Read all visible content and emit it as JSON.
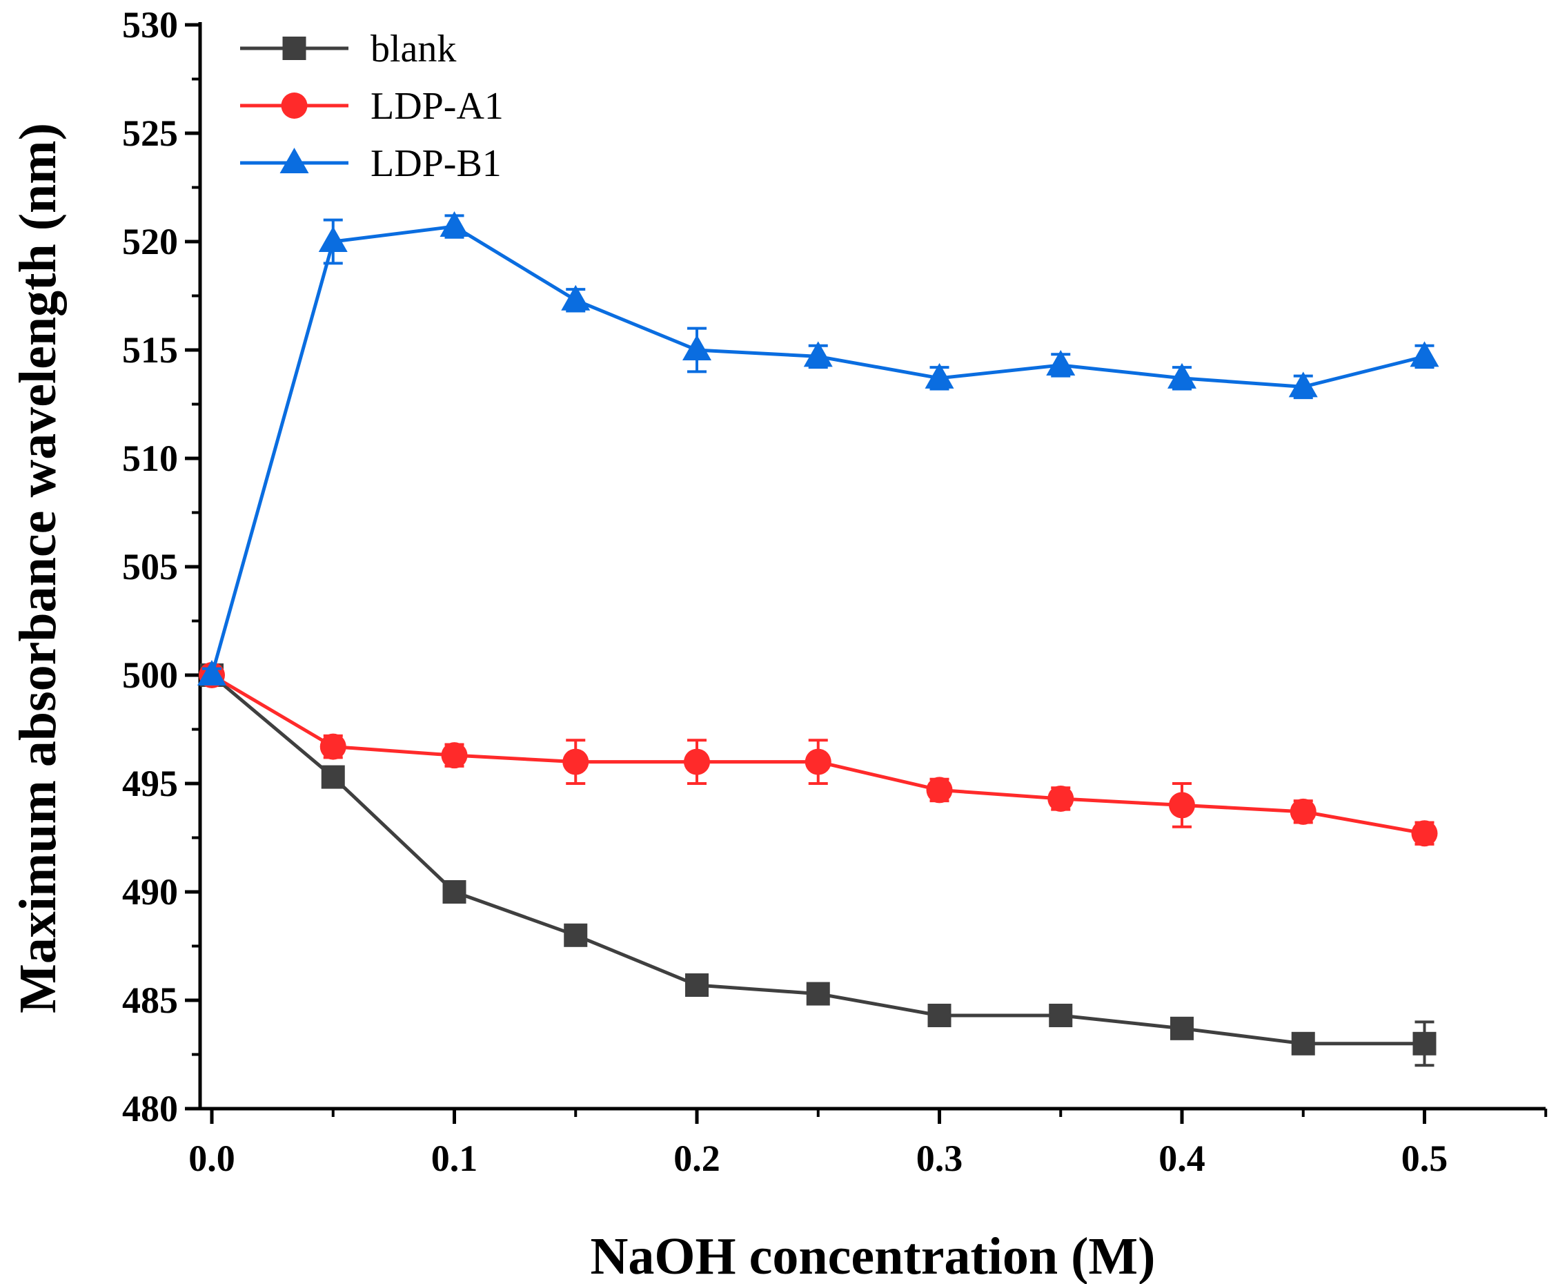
{
  "chart_data": {
    "type": "line",
    "xlabel": "NaOH concentration (M)",
    "ylabel": "Maximum absorbance wavelength (nm)",
    "xlim": [
      0,
      0.55
    ],
    "ylim": [
      480,
      530
    ],
    "xticks": [
      0.0,
      0.1,
      0.2,
      0.3,
      0.4,
      0.5
    ],
    "xtick_labels": [
      "0.0",
      "0.1",
      "0.2",
      "0.3",
      "0.4",
      "0.5"
    ],
    "yticks": [
      480,
      485,
      490,
      495,
      500,
      505,
      510,
      515,
      520,
      525,
      530
    ],
    "ytick_labels": [
      "480",
      "485",
      "490",
      "495",
      "500",
      "505",
      "510",
      "515",
      "520",
      "525",
      "530"
    ],
    "legend_position": "top-left",
    "x": [
      0.0,
      0.05,
      0.1,
      0.15,
      0.2,
      0.25,
      0.3,
      0.35,
      0.4,
      0.45,
      0.5
    ],
    "series": [
      {
        "name": "blank",
        "color": "#3f3f3f",
        "marker": "square",
        "values": [
          500.0,
          495.3,
          490.0,
          488.0,
          485.7,
          485.3,
          484.3,
          484.3,
          483.7,
          483.0,
          483.0
        ],
        "errors": [
          0.3,
          0.3,
          0.2,
          0.2,
          0.3,
          0.3,
          0.3,
          0.3,
          0.3,
          0.2,
          1.0
        ]
      },
      {
        "name": "LDP-A1",
        "color": "#ff2a2a",
        "marker": "circle",
        "values": [
          500.0,
          496.7,
          496.3,
          496.0,
          496.0,
          496.0,
          494.7,
          494.3,
          494.0,
          493.7,
          492.7
        ],
        "errors": [
          0.3,
          0.5,
          0.5,
          1.0,
          1.0,
          1.0,
          0.5,
          0.5,
          1.0,
          0.5,
          0.5
        ]
      },
      {
        "name": "LDP-B1",
        "color": "#0a6de0",
        "marker": "triangle",
        "values": [
          500.0,
          520.0,
          520.7,
          517.3,
          515.0,
          514.7,
          513.7,
          514.3,
          513.7,
          513.3,
          514.7
        ],
        "errors": [
          0.3,
          1.0,
          0.5,
          0.5,
          1.0,
          0.5,
          0.5,
          0.5,
          0.5,
          0.5,
          0.5
        ]
      }
    ]
  }
}
